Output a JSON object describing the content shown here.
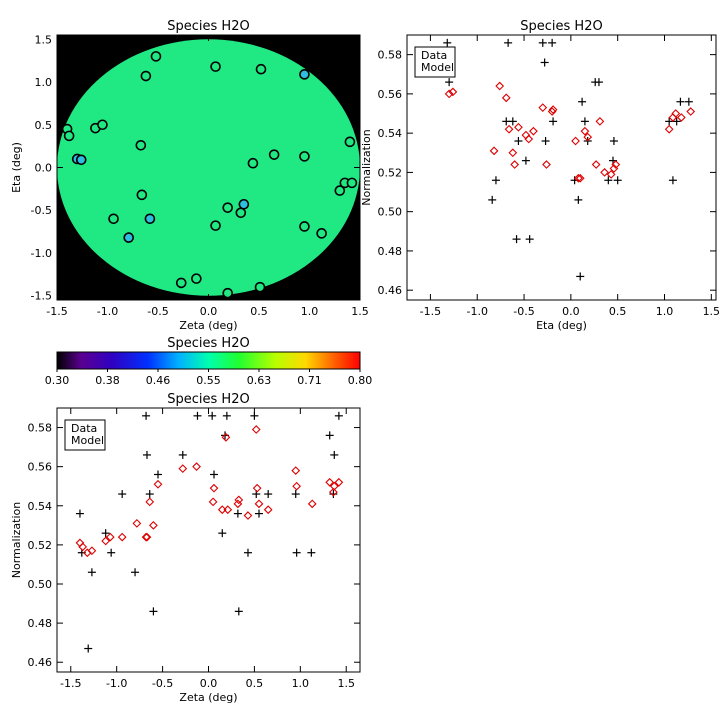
{
  "chart_data": [
    {
      "id": "map",
      "type": "scatter",
      "title": "Species H2O",
      "xlabel": "Zeta (deg)",
      "ylabel": "Eta (deg)",
      "xlim": [
        -1.5,
        1.5
      ],
      "ylim": [
        -1.55,
        1.55
      ],
      "xticks": [
        -1.5,
        -1.0,
        -0.5,
        0.0,
        0.5,
        1.0,
        1.5
      ],
      "xtick_labels": [
        "-1.5",
        "-1.0",
        "-0.5",
        "0.0",
        "0.5",
        "1.0",
        "1.5"
      ],
      "yticks": [
        -1.5,
        -1.0,
        -0.5,
        0.0,
        0.5,
        1.0,
        1.5
      ],
      "ytick_labels": [
        "-1.5",
        "-1.0",
        "-0.5",
        "0.0",
        "0.5",
        "1.0",
        "1.5"
      ],
      "background_color": "#000000",
      "disk_color": "#20e882",
      "points": [
        {
          "x": -1.4,
          "y": 0.45,
          "color": "#20e882"
        },
        {
          "x": -1.38,
          "y": 0.37,
          "color": "#20e882"
        },
        {
          "x": -1.3,
          "y": 0.1,
          "color": "#2dbee0"
        },
        {
          "x": -1.26,
          "y": 0.09,
          "color": "#2dbee0"
        },
        {
          "x": -1.12,
          "y": 0.46,
          "color": "#20e882"
        },
        {
          "x": -1.05,
          "y": 0.5,
          "color": "#20e882"
        },
        {
          "x": -0.94,
          "y": -0.6,
          "color": "#20e882"
        },
        {
          "x": -0.79,
          "y": -0.82,
          "color": "#2dbee0"
        },
        {
          "x": -0.67,
          "y": 0.26,
          "color": "#20e882"
        },
        {
          "x": -0.66,
          "y": -0.32,
          "color": "#20e882"
        },
        {
          "x": -0.62,
          "y": 1.07,
          "color": "#20e882"
        },
        {
          "x": -0.58,
          "y": -0.6,
          "color": "#2dbee0"
        },
        {
          "x": -0.52,
          "y": 1.3,
          "color": "#20e882"
        },
        {
          "x": -0.27,
          "y": -1.35,
          "color": "#20e882"
        },
        {
          "x": -0.12,
          "y": -1.3,
          "color": "#20e882"
        },
        {
          "x": 0.07,
          "y": 1.18,
          "color": "#20e882"
        },
        {
          "x": 0.07,
          "y": -0.68,
          "color": "#20e882"
        },
        {
          "x": 0.19,
          "y": -0.47,
          "color": "#20e882"
        },
        {
          "x": 0.19,
          "y": -1.47,
          "color": "#20e882"
        },
        {
          "x": 0.32,
          "y": -0.53,
          "color": "#20e882"
        },
        {
          "x": 0.35,
          "y": -0.43,
          "color": "#2dbee0"
        },
        {
          "x": 0.44,
          "y": 0.05,
          "color": "#20e882"
        },
        {
          "x": 0.51,
          "y": -1.4,
          "color": "#20e882"
        },
        {
          "x": 0.52,
          "y": 1.15,
          "color": "#20e882"
        },
        {
          "x": 0.65,
          "y": 0.15,
          "color": "#20e882"
        },
        {
          "x": 0.95,
          "y": 1.09,
          "color": "#2dbee0"
        },
        {
          "x": 0.95,
          "y": 0.13,
          "color": "#20e882"
        },
        {
          "x": 0.95,
          "y": -0.69,
          "color": "#20e882"
        },
        {
          "x": 1.12,
          "y": -0.77,
          "color": "#20e882"
        },
        {
          "x": 1.3,
          "y": -0.27,
          "color": "#20e882"
        },
        {
          "x": 1.35,
          "y": -0.18,
          "color": "#20e882"
        },
        {
          "x": 1.4,
          "y": 0.3,
          "color": "#20e882"
        },
        {
          "x": 1.42,
          "y": -0.18,
          "color": "#20e882"
        }
      ]
    },
    {
      "id": "eta",
      "type": "scatter",
      "title": "Species H2O",
      "xlabel": "Eta (deg)",
      "ylabel": "Normalization",
      "xlim": [
        -1.75,
        1.55
      ],
      "ylim": [
        0.455,
        0.59
      ],
      "xticks": [
        -1.5,
        -1.0,
        -0.5,
        0.0,
        0.5,
        1.0,
        1.5
      ],
      "xtick_labels": [
        "-1.5",
        "-1.0",
        "-0.5",
        "0.0",
        "0.5",
        "1.0",
        "1.5"
      ],
      "yticks": [
        0.46,
        0.48,
        0.5,
        0.52,
        0.54,
        0.56,
        0.58
      ],
      "ytick_labels": [
        "0.46",
        "0.48",
        "0.50",
        "0.52",
        "0.54",
        "0.56",
        "0.58"
      ],
      "legend": {
        "position": "top-left",
        "entries": [
          "Data",
          "Model"
        ],
        "colors": [
          "#000000",
          "#e00000"
        ]
      },
      "series": [
        {
          "name": "Data",
          "marker": "plus",
          "color": "#000000",
          "x": [
            -1.4,
            -1.32,
            -1.3,
            -0.84,
            -0.8,
            -0.69,
            -0.67,
            -0.62,
            -0.58,
            -0.56,
            -0.48,
            -0.44,
            -0.3,
            -0.28,
            -0.27,
            -0.2,
            -0.19,
            0.04,
            0.08,
            0.1,
            0.12,
            0.15,
            0.18,
            0.26,
            0.3,
            0.4,
            0.45,
            0.46,
            0.5,
            1.05,
            1.09,
            1.13,
            1.17,
            1.26
          ],
          "y": [
            0.577,
            0.586,
            0.566,
            0.506,
            0.516,
            0.546,
            0.586,
            0.546,
            0.486,
            0.536,
            0.526,
            0.486,
            0.586,
            0.576,
            0.536,
            0.586,
            0.546,
            0.516,
            0.506,
            0.467,
            0.556,
            0.546,
            0.536,
            0.566,
            0.566,
            0.516,
            0.526,
            0.536,
            0.516,
            0.546,
            0.516,
            0.546,
            0.556,
            0.556
          ]
        },
        {
          "name": "Model",
          "marker": "diamond",
          "color": "#e00000",
          "x": [
            -1.4,
            -1.3,
            -1.26,
            -0.82,
            -0.76,
            -0.69,
            -0.66,
            -0.62,
            -0.6,
            -0.56,
            -0.48,
            -0.45,
            -0.4,
            -0.3,
            -0.26,
            -0.2,
            -0.19,
            0.05,
            0.08,
            0.1,
            0.15,
            0.18,
            0.27,
            0.31,
            0.36,
            0.43,
            0.46,
            0.48,
            1.05,
            1.09,
            1.12,
            1.18,
            1.28
          ],
          "y": [
            0.576,
            0.56,
            0.561,
            0.531,
            0.564,
            0.558,
            0.542,
            0.53,
            0.524,
            0.543,
            0.539,
            0.537,
            0.541,
            0.553,
            0.524,
            0.551,
            0.552,
            0.536,
            0.517,
            0.517,
            0.541,
            0.538,
            0.524,
            0.546,
            0.52,
            0.519,
            0.522,
            0.524,
            0.542,
            0.548,
            0.55,
            0.548,
            0.551
          ]
        }
      ]
    },
    {
      "id": "colorbar",
      "type": "heatmap",
      "title": "Species H2O",
      "colormap": "rainbow",
      "range": [
        0.3,
        0.8
      ],
      "tick_labels": [
        "0.30",
        "0.38",
        "0.46",
        "0.55",
        "0.63",
        "0.71",
        "0.80"
      ]
    },
    {
      "id": "zeta",
      "type": "scatter",
      "title": "Species H2O",
      "xlabel": "Zeta (deg)",
      "ylabel": "Normalization",
      "xlim": [
        -1.65,
        1.65
      ],
      "ylim": [
        0.455,
        0.59
      ],
      "xticks": [
        -1.5,
        -1.0,
        -0.5,
        0.0,
        0.5,
        1.0,
        1.5
      ],
      "xtick_labels": [
        "-1.5",
        "-1.0",
        "-0.5",
        "0.0",
        "0.5",
        "1.0",
        "1.5"
      ],
      "yticks": [
        0.46,
        0.48,
        0.5,
        0.52,
        0.54,
        0.56,
        0.58
      ],
      "ytick_labels": [
        "0.46",
        "0.48",
        "0.50",
        "0.52",
        "0.54",
        "0.56",
        "0.58"
      ],
      "legend": {
        "position": "top-left",
        "entries": [
          "Data",
          "Model"
        ],
        "colors": [
          "#000000",
          "#e00000"
        ]
      },
      "series": [
        {
          "name": "Data",
          "marker": "plus",
          "color": "#000000",
          "x": [
            -1.4,
            -1.38,
            -1.31,
            -1.27,
            -1.12,
            -1.06,
            -0.94,
            -0.8,
            -0.68,
            -0.67,
            -0.64,
            -0.6,
            -0.55,
            -0.28,
            -0.12,
            0.04,
            0.06,
            0.15,
            0.18,
            0.2,
            0.32,
            0.33,
            0.43,
            0.5,
            0.52,
            0.55,
            0.65,
            0.95,
            0.96,
            1.12,
            1.32,
            1.36,
            1.37,
            1.42
          ],
          "y": [
            0.536,
            0.516,
            0.467,
            0.506,
            0.526,
            0.516,
            0.546,
            0.506,
            0.586,
            0.566,
            0.546,
            0.486,
            0.556,
            0.566,
            0.586,
            0.586,
            0.556,
            0.526,
            0.576,
            0.586,
            0.536,
            0.486,
            0.516,
            0.586,
            0.546,
            0.536,
            0.546,
            0.546,
            0.516,
            0.516,
            0.576,
            0.546,
            0.566,
            0.586
          ]
        },
        {
          "name": "Model",
          "marker": "diamond",
          "color": "#e00000",
          "x": [
            -1.4,
            -1.37,
            -1.32,
            -1.27,
            -1.12,
            -1.07,
            -0.94,
            -0.78,
            -0.68,
            -0.67,
            -0.64,
            -0.6,
            -0.55,
            -0.28,
            -0.13,
            0.05,
            0.06,
            0.15,
            0.19,
            0.21,
            0.32,
            0.33,
            0.43,
            0.52,
            0.53,
            0.55,
            0.65,
            0.95,
            0.96,
            1.13,
            1.32,
            1.36,
            1.37,
            1.42
          ],
          "y": [
            0.521,
            0.519,
            0.516,
            0.517,
            0.522,
            0.524,
            0.524,
            0.531,
            0.524,
            0.524,
            0.542,
            0.53,
            0.551,
            0.559,
            0.56,
            0.542,
            0.549,
            0.538,
            0.575,
            0.538,
            0.541,
            0.543,
            0.535,
            0.579,
            0.549,
            0.541,
            0.538,
            0.558,
            0.55,
            0.541,
            0.552,
            0.547,
            0.55,
            0.552
          ]
        }
      ]
    }
  ]
}
